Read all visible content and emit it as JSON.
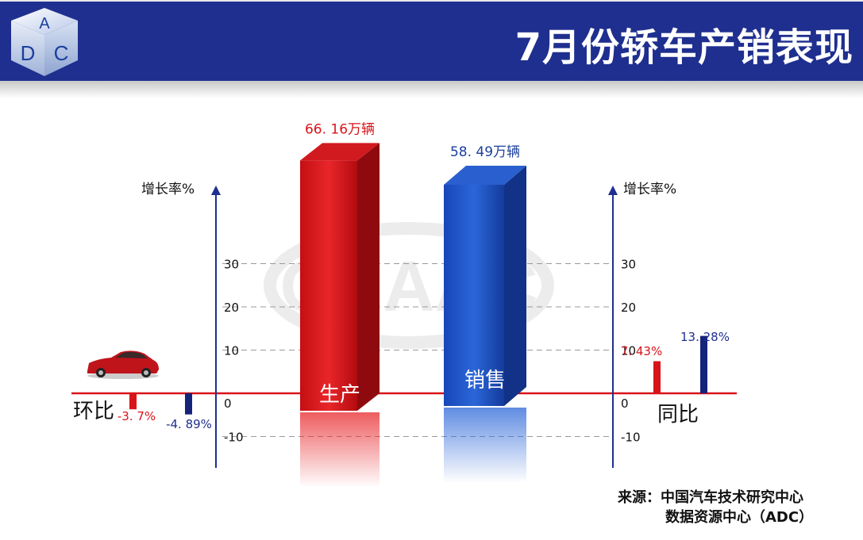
{
  "header": {
    "title": "7月份轿车产销表现",
    "logo_letters": [
      "A",
      "D",
      "C"
    ]
  },
  "watermark": "CNAAC",
  "source": {
    "line1": "来源：中国汽车技术研究中心",
    "line2": "数据资源中心（ADC）"
  },
  "colors": {
    "header": "#1f2f8f",
    "red": "#d8141a",
    "blue": "#1b3f9e",
    "navy": "#15237a"
  },
  "chart_data": {
    "type": "bar",
    "axis_label": "增长率%",
    "ylim": [
      -10,
      30
    ],
    "ticks": [
      "30",
      "20",
      "10",
      "0",
      "-10"
    ],
    "volume": {
      "categories": [
        "生产",
        "销售"
      ],
      "values": [
        66.16,
        58.49
      ],
      "value_labels": [
        "66. 16万辆",
        "58. 49万辆"
      ]
    },
    "mom": {
      "label": "环比",
      "values": [
        -3.7,
        -4.89
      ],
      "value_labels": [
        "-3. 7%",
        "-4. 89%"
      ]
    },
    "yoy": {
      "label": "同比",
      "values": [
        7.43,
        13.28
      ],
      "value_labels": [
        "7. 43%",
        "13. 28%"
      ]
    }
  }
}
